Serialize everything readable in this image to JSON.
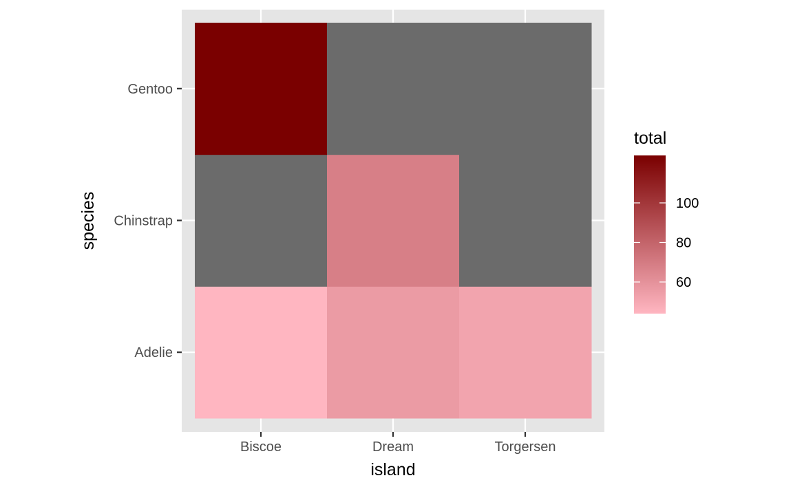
{
  "chart_data": {
    "type": "heatmap",
    "xlabel": "island",
    "ylabel": "species",
    "x_categories": [
      "Biscoe",
      "Dream",
      "Torgersen"
    ],
    "y_categories": [
      "Adelie",
      "Chinstrap",
      "Gentoo"
    ],
    "cells": [
      {
        "x": "Biscoe",
        "y": "Adelie",
        "value": 44
      },
      {
        "x": "Dream",
        "y": "Adelie",
        "value": 56
      },
      {
        "x": "Torgersen",
        "y": "Adelie",
        "value": 52
      },
      {
        "x": "Biscoe",
        "y": "Chinstrap",
        "value": null
      },
      {
        "x": "Dream",
        "y": "Chinstrap",
        "value": 68
      },
      {
        "x": "Torgersen",
        "y": "Chinstrap",
        "value": null
      },
      {
        "x": "Biscoe",
        "y": "Gentoo",
        "value": 124
      },
      {
        "x": "Dream",
        "y": "Gentoo",
        "value": null
      },
      {
        "x": "Torgersen",
        "y": "Gentoo",
        "value": null
      }
    ],
    "legend": {
      "title": "total",
      "breaks": [
        60,
        80,
        100
      ],
      "range": [
        44,
        124
      ],
      "low_color": "#FFB6C1",
      "high_color": "#7A0000",
      "placement": "right"
    },
    "na_color": "#6B6B6B",
    "panel_background": "#E5E5E5",
    "grid_color": "#FFFFFF",
    "grid": true
  }
}
